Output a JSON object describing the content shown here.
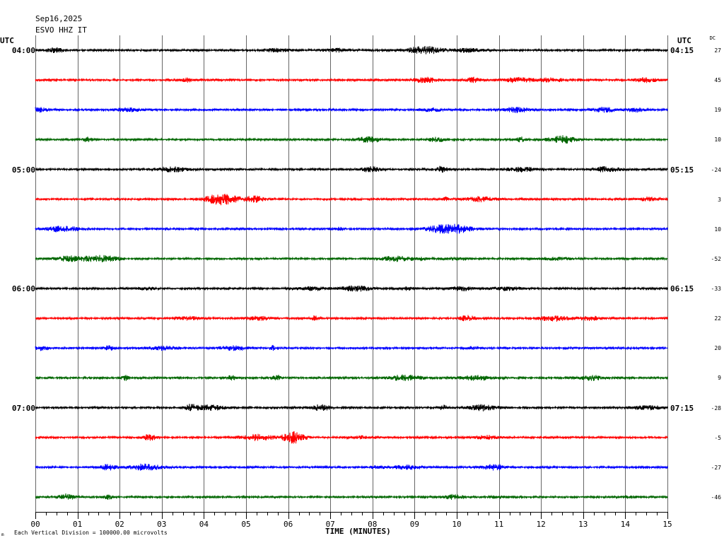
{
  "header": {
    "date": "Sep16,2025",
    "station": "ESVO HHZ IT"
  },
  "left_axis_label": "UTC",
  "right_axis_label": "UTC",
  "dc_header": "DC",
  "footer": {
    "corner_mark": "m",
    "scale_note": "Each Vertical Division = 100000.00 microvolts"
  },
  "colors": {
    "black": "#000000",
    "red": "#ff0000",
    "blue": "#0000ff",
    "green": "#006600",
    "grid": "#000000"
  },
  "chart_data": {
    "type": "line",
    "xlabel": "TIME (MINUTES)",
    "xlim": [
      0,
      15
    ],
    "x_ticks": [
      "00",
      "01",
      "02",
      "03",
      "04",
      "05",
      "06",
      "07",
      "08",
      "09",
      "10",
      "11",
      "12",
      "13",
      "14",
      "15"
    ],
    "minor_ticks_per_minute": 4,
    "grid": true,
    "traces": [
      {
        "start_left": "04:00",
        "end_right": "04:15",
        "dc": "27",
        "color": "black"
      },
      {
        "start_left": "",
        "end_right": "",
        "dc": "45",
        "color": "red"
      },
      {
        "start_left": "",
        "end_right": "",
        "dc": "19",
        "color": "blue"
      },
      {
        "start_left": "",
        "end_right": "",
        "dc": "10",
        "color": "green"
      },
      {
        "start_left": "05:00",
        "end_right": "05:15",
        "dc": "-24",
        "color": "black"
      },
      {
        "start_left": "",
        "end_right": "",
        "dc": "3",
        "color": "red"
      },
      {
        "start_left": "",
        "end_right": "",
        "dc": "10",
        "color": "blue"
      },
      {
        "start_left": "",
        "end_right": "",
        "dc": "-52",
        "color": "green"
      },
      {
        "start_left": "06:00",
        "end_right": "06:15",
        "dc": "-33",
        "color": "black"
      },
      {
        "start_left": "",
        "end_right": "",
        "dc": "22",
        "color": "red"
      },
      {
        "start_left": "",
        "end_right": "",
        "dc": "20",
        "color": "blue"
      },
      {
        "start_left": "",
        "end_right": "",
        "dc": "9",
        "color": "green"
      },
      {
        "start_left": "07:00",
        "end_right": "07:15",
        "dc": "-28",
        "color": "black"
      },
      {
        "start_left": "",
        "end_right": "",
        "dc": "-5",
        "color": "red"
      },
      {
        "start_left": "",
        "end_right": "",
        "dc": "-27",
        "color": "blue"
      },
      {
        "start_left": "",
        "end_right": "",
        "dc": "-46",
        "color": "green"
      }
    ]
  }
}
